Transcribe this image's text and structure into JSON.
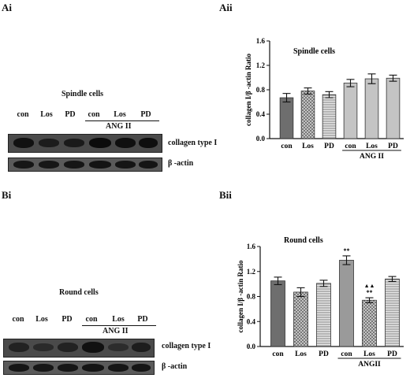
{
  "panels": {
    "ai": "Ai",
    "aii": "Aii",
    "bi": "Bi",
    "bii": "Bii"
  },
  "blot_a": {
    "title": "Spindle cells",
    "lanes": [
      "con",
      "Los",
      "PD",
      "con",
      "Los",
      "PD"
    ],
    "group_label": "ANG II",
    "row1_label": "collagen type I",
    "row2_label": "β -actin"
  },
  "blot_b": {
    "title": "Round cells",
    "lanes": [
      "con",
      "Los",
      "PD",
      "con",
      "Los",
      "PD"
    ],
    "group_label": "ANG II",
    "row1_label": "collagen type I",
    "row2_label": "β -actin"
  },
  "chart_data": [
    {
      "type": "bar",
      "title": "Spindle cells",
      "ylabel": "collagen I/β -actin Ratio",
      "categories": [
        "con",
        "Los",
        "PD",
        "con",
        "Los",
        "PD"
      ],
      "group_label": "ANG II",
      "values": [
        0.67,
        0.78,
        0.72,
        0.91,
        0.98,
        0.99
      ],
      "errors": [
        0.07,
        0.05,
        0.05,
        0.06,
        0.08,
        0.05
      ],
      "ylim": [
        0,
        1.6
      ],
      "yticks": [
        "0.0",
        "0.4",
        "0.8",
        "1.2",
        "1.6"
      ],
      "annotations": [
        "",
        "",
        "",
        "",
        "",
        ""
      ],
      "annotations2": [
        "",
        "",
        "",
        "",
        "",
        ""
      ],
      "patterns": [
        "dark",
        "cross",
        "hstripe",
        "light",
        "light",
        "light"
      ]
    },
    {
      "type": "bar",
      "title": "Round cells",
      "ylabel": "collagen I/β -actin Ratio",
      "categories": [
        "con",
        "Los",
        "PD",
        "con",
        "Los",
        "PD"
      ],
      "group_label": "ANGII",
      "values": [
        1.05,
        0.87,
        1.01,
        1.38,
        0.74,
        1.08
      ],
      "errors": [
        0.06,
        0.07,
        0.05,
        0.07,
        0.04,
        0.04
      ],
      "ylim": [
        0,
        1.6
      ],
      "yticks": [
        "0.0",
        "0.4",
        "0.8",
        "1.2",
        "1.6"
      ],
      "annotations": [
        "",
        "",
        "",
        "**",
        "**",
        ""
      ],
      "annotations2": [
        "",
        "",
        "",
        "",
        "▲▲",
        ""
      ],
      "patterns": [
        "dark",
        "cross",
        "hstripe",
        "medium",
        "cross",
        "hstripe"
      ]
    }
  ]
}
